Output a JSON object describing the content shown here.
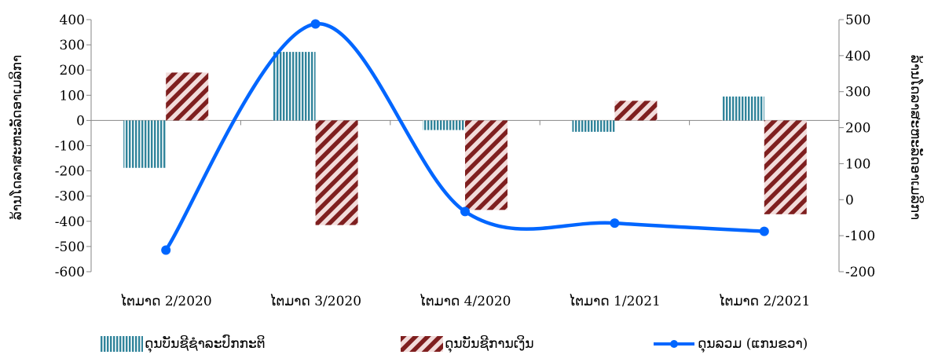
{
  "chart_data": {
    "type": "bar+line",
    "categories": [
      "ໄຕມາດ 2/2020",
      "ໄຕມາດ 3/2020",
      "ໄຕມາດ 4/2020",
      "ໄຕມາດ 1/2021",
      "ໄຕມາດ 2/2021"
    ],
    "series": [
      {
        "name": "ດຸນບັນຊີຊຳລະປົກກະຕິ",
        "type": "bar",
        "axis": "left",
        "pattern": "vertical-stripes",
        "color": "#31849b",
        "values": [
          -188,
          272,
          -38,
          -45,
          95
        ]
      },
      {
        "name": "ດຸນບັນຊີການເງິນ",
        "type": "bar",
        "axis": "left",
        "pattern": "diagonal-stripes",
        "color": "#7f1f1f",
        "values": [
          190,
          -415,
          -355,
          78,
          -372
        ]
      },
      {
        "name": "ດຸນລວມ (ແກນຂວາ)",
        "type": "line",
        "axis": "right",
        "color": "#0066ff",
        "values": [
          -140,
          488,
          -33,
          -65,
          -88
        ]
      }
    ],
    "left_axis": {
      "label": "ລ້ານໂດລາສະຫະລັດອາເມລິກາ",
      "ylim": [
        -600,
        400
      ],
      "ticks": [
        "400",
        "300",
        "200",
        "100",
        "0",
        "-100",
        "-200",
        "-300",
        "-400",
        "-500",
        "-600"
      ]
    },
    "right_axis": {
      "label": "ລ້ານໂດລາສະຫະລັດອາເມລິກາ",
      "ylim": [
        -200,
        500
      ],
      "ticks": [
        "500",
        "400",
        "300",
        "200",
        "100",
        "0",
        "-100",
        "-200"
      ]
    },
    "legend_position": "bottom",
    "grid": false
  }
}
